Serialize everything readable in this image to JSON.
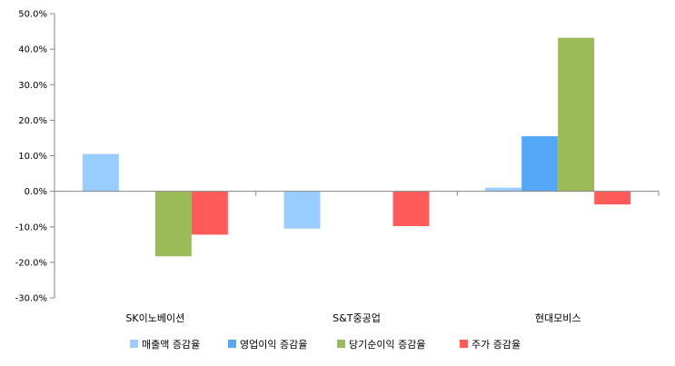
{
  "chart_data": {
    "type": "bar",
    "categories": [
      "SK이노베이션",
      "S&T중공업",
      "현대모비스"
    ],
    "series": [
      {
        "name": "매출액 증감율",
        "color": "#99CCFF",
        "values": [
          10.5,
          -10.5,
          1.0
        ]
      },
      {
        "name": "영업이익 증감율",
        "color": "#55A8F7",
        "values": [
          0,
          0,
          15.5
        ]
      },
      {
        "name": "당기순이익 증감율",
        "color": "#9BBB59",
        "values": [
          -18.3,
          0,
          43.2
        ]
      },
      {
        "name": "주가 증감율",
        "color": "#FF5B5B",
        "values": [
          -12.2,
          -9.8,
          -3.7
        ]
      }
    ],
    "ylim": [
      -30,
      50
    ],
    "yticks": [
      50,
      40,
      30,
      20,
      10,
      0,
      -10,
      -20,
      -30
    ],
    "ytick_labels": [
      "50.0%",
      "40.0%",
      "30.0%",
      "20.0%",
      "10.0%",
      "0.0%",
      "-10.0%",
      "-20.0%",
      "-30.0%"
    ],
    "grid": false,
    "legend_position": "bottom"
  }
}
